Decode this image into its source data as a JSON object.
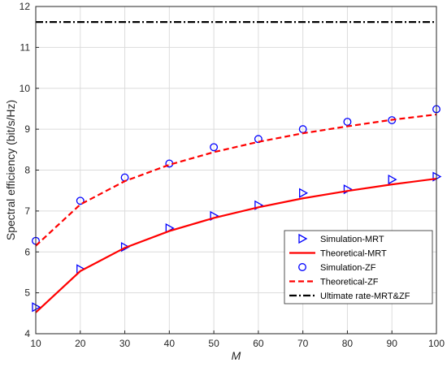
{
  "chart_data": {
    "type": "line",
    "xlabel": "M",
    "ylabel": "Spectral efficiency (bit/s/Hz)",
    "xlim": [
      10,
      100
    ],
    "ylim": [
      4,
      12
    ],
    "xticks": [
      "10",
      "20",
      "30",
      "40",
      "50",
      "60",
      "70",
      "80",
      "90",
      "100"
    ],
    "yticks": [
      "4",
      "5",
      "6",
      "7",
      "8",
      "9",
      "10",
      "11",
      "12"
    ],
    "grid": true,
    "legend_position": "bottom-right",
    "x": [
      10,
      20,
      30,
      40,
      50,
      60,
      70,
      80,
      90,
      100
    ],
    "series": [
      {
        "name": "Simulation-MRT",
        "marker": "triangle-right",
        "line": "none",
        "color": "#0000ff",
        "values": [
          4.65,
          5.58,
          6.12,
          6.58,
          6.88,
          7.14,
          7.44,
          7.53,
          7.77,
          7.84
        ]
      },
      {
        "name": "Theoretical-MRT",
        "marker": "none",
        "line": "solid",
        "color": "#ff0000",
        "values": [
          4.52,
          5.53,
          6.1,
          6.51,
          6.83,
          7.09,
          7.31,
          7.49,
          7.65,
          7.79
        ]
      },
      {
        "name": "Simulation-ZF",
        "marker": "circle",
        "line": "none",
        "color": "#0000ff",
        "values": [
          6.27,
          7.25,
          7.82,
          8.16,
          8.56,
          8.76,
          9.0,
          9.18,
          9.22,
          9.49
        ]
      },
      {
        "name": "Theoretical-ZF",
        "marker": "none",
        "line": "dashed",
        "color": "#ff0000",
        "values": [
          6.15,
          7.16,
          7.73,
          8.13,
          8.44,
          8.69,
          8.9,
          9.07,
          9.23,
          9.36
        ]
      },
      {
        "name": "Ultimate rate-MRT&ZF",
        "marker": "none",
        "line": "dashdot",
        "color": "#000000",
        "values": [
          11.62,
          11.62,
          11.62,
          11.62,
          11.62,
          11.62,
          11.62,
          11.62,
          11.62,
          11.62
        ]
      }
    ]
  }
}
